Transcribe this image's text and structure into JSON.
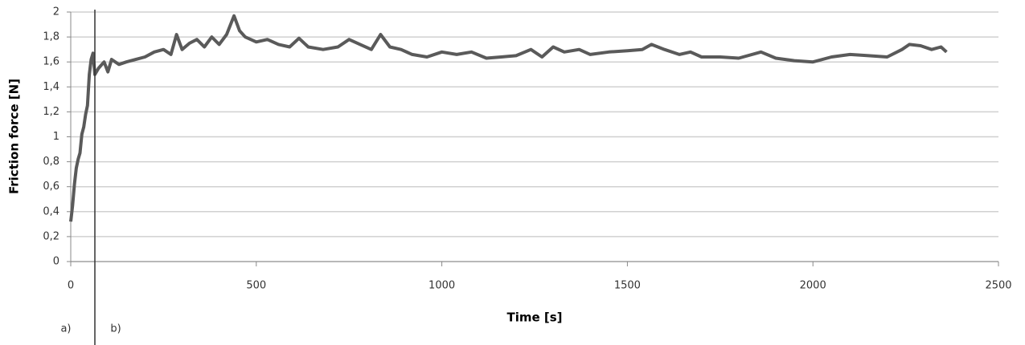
{
  "chart_data": {
    "type": "line",
    "x_label": "Time [s]",
    "y_label": "Friction force [N]",
    "annotations": [
      "a)",
      "b)"
    ],
    "divider_x": 65,
    "xlim": [
      0,
      2500
    ],
    "xticks": [
      0,
      500,
      1000,
      1500,
      2000,
      2500
    ],
    "ylim": [
      0,
      2
    ],
    "yticks": [
      0,
      {
        "value": 0.2,
        "label": "0,2"
      },
      {
        "value": 0.4,
        "label": "0,4"
      },
      {
        "value": 0.6,
        "label": "0,6"
      },
      {
        "value": 0.8,
        "label": "0,8"
      },
      1,
      {
        "value": 1.2,
        "label": "1,2"
      },
      {
        "value": 1.4,
        "label": "1,4"
      },
      {
        "value": 1.6,
        "label": "1,6"
      },
      {
        "value": 1.8,
        "label": "1,8"
      },
      2
    ],
    "grid": true,
    "series": [
      {
        "color": "#5a5a5a",
        "x": [
          0,
          5,
          10,
          15,
          20,
          25,
          30,
          35,
          40,
          45,
          50,
          55,
          60,
          65,
          75,
          90,
          100,
          110,
          130,
          150,
          175,
          200,
          225,
          250,
          270,
          285,
          300,
          320,
          340,
          360,
          380,
          400,
          420,
          440,
          455,
          470,
          500,
          530,
          560,
          590,
          615,
          640,
          680,
          720,
          750,
          780,
          810,
          835,
          860,
          890,
          920,
          960,
          1000,
          1040,
          1080,
          1120,
          1160,
          1200,
          1240,
          1270,
          1300,
          1330,
          1370,
          1400,
          1450,
          1500,
          1540,
          1565,
          1600,
          1640,
          1670,
          1700,
          1750,
          1800,
          1860,
          1900,
          1950,
          2000,
          2050,
          2100,
          2150,
          2200,
          2240,
          2260,
          2290,
          2320,
          2345,
          2360
        ],
        "values": [
          0.32,
          0.45,
          0.62,
          0.75,
          0.82,
          0.87,
          1.02,
          1.08,
          1.18,
          1.25,
          1.5,
          1.62,
          1.67,
          1.5,
          1.55,
          1.6,
          1.52,
          1.62,
          1.58,
          1.6,
          1.62,
          1.64,
          1.68,
          1.7,
          1.66,
          1.82,
          1.7,
          1.75,
          1.78,
          1.72,
          1.8,
          1.74,
          1.82,
          1.97,
          1.85,
          1.8,
          1.76,
          1.78,
          1.74,
          1.72,
          1.79,
          1.72,
          1.7,
          1.72,
          1.78,
          1.74,
          1.7,
          1.82,
          1.72,
          1.7,
          1.66,
          1.64,
          1.68,
          1.66,
          1.68,
          1.63,
          1.64,
          1.65,
          1.7,
          1.64,
          1.72,
          1.68,
          1.7,
          1.66,
          1.68,
          1.69,
          1.7,
          1.74,
          1.7,
          1.66,
          1.68,
          1.64,
          1.64,
          1.63,
          1.68,
          1.63,
          1.61,
          1.6,
          1.64,
          1.66,
          1.65,
          1.64,
          1.7,
          1.74,
          1.73,
          1.7,
          1.72,
          1.68
        ]
      }
    ]
  }
}
